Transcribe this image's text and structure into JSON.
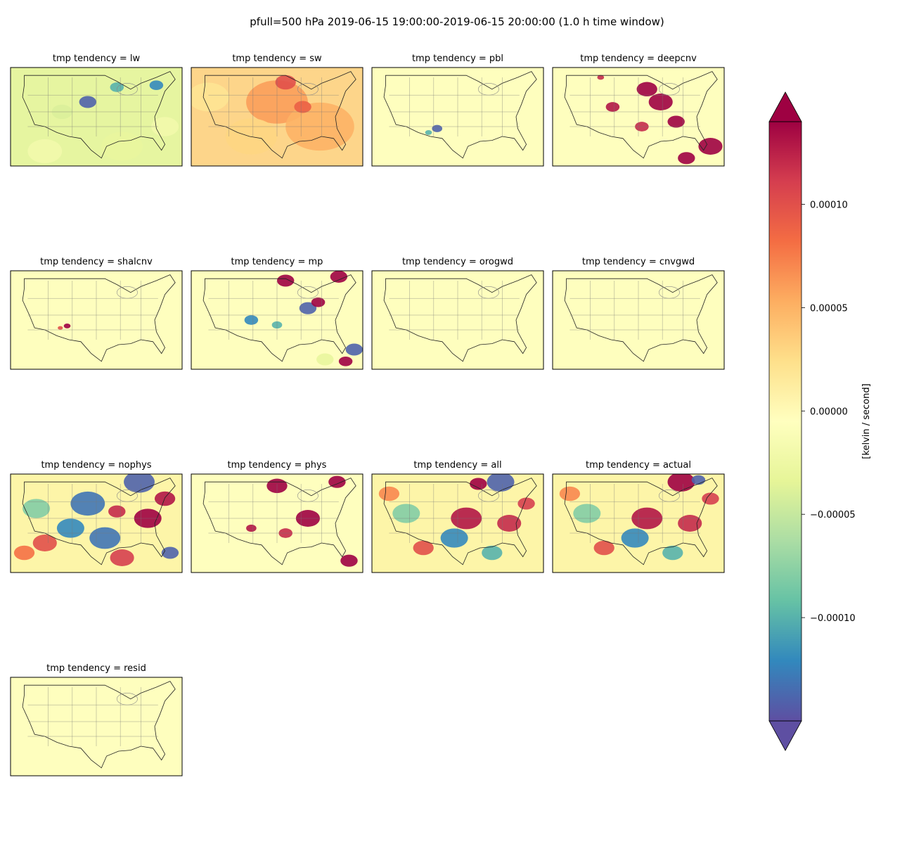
{
  "chart_data": {
    "type": "heatmap",
    "title": "pfull=500 hPa 2019-06-15 19:00:00-2019-06-15 20:00:00 (1.0 h time window)",
    "layout": {
      "columns": 4,
      "rows": 4
    },
    "panels": [
      {
        "title": "tmp tendency = lw",
        "background": "#e6f5a0",
        "fields": [
          {
            "cx": 0.45,
            "cy": 0.35,
            "r": 0.05,
            "v": -0.00014
          },
          {
            "cx": 0.85,
            "cy": 0.18,
            "r": 0.04,
            "v": -0.00012
          },
          {
            "cx": 0.62,
            "cy": 0.2,
            "r": 0.04,
            "v": -0.0001
          },
          {
            "cx": 0.3,
            "cy": 0.45,
            "r": 0.06,
            "v": -4e-05
          },
          {
            "cx": 0.65,
            "cy": 0.8,
            "r": 0.12,
            "v": -3e-05
          },
          {
            "cx": 0.2,
            "cy": 0.85,
            "r": 0.1,
            "v": -2e-05
          },
          {
            "cx": 0.9,
            "cy": 0.6,
            "r": 0.08,
            "v": -2e-05
          }
        ]
      },
      {
        "title": "tmp tendency = sw",
        "background": "#fdd58a",
        "fields": [
          {
            "cx": 0.5,
            "cy": 0.35,
            "r": 0.18,
            "v": 6e-05
          },
          {
            "cx": 0.75,
            "cy": 0.6,
            "r": 0.2,
            "v": 5e-05
          },
          {
            "cx": 0.35,
            "cy": 0.7,
            "r": 0.15,
            "v": 3e-05
          },
          {
            "cx": 0.1,
            "cy": 0.3,
            "r": 0.12,
            "v": 2e-05
          },
          {
            "cx": 0.55,
            "cy": 0.15,
            "r": 0.06,
            "v": 0.0001
          },
          {
            "cx": 0.65,
            "cy": 0.4,
            "r": 0.05,
            "v": 9e-05
          }
        ]
      },
      {
        "title": "tmp tendency = pbl",
        "background": "#fefebe",
        "fields": [
          {
            "cx": 0.38,
            "cy": 0.62,
            "r": 0.03,
            "v": -0.00014
          },
          {
            "cx": 0.33,
            "cy": 0.66,
            "r": 0.02,
            "v": -0.0001
          }
        ]
      },
      {
        "title": "tmp tendency = deepcnv",
        "background": "#fefebe",
        "fields": [
          {
            "cx": 0.55,
            "cy": 0.22,
            "r": 0.06,
            "v": 0.00014
          },
          {
            "cx": 0.63,
            "cy": 0.35,
            "r": 0.07,
            "v": 0.00014
          },
          {
            "cx": 0.35,
            "cy": 0.4,
            "r": 0.04,
            "v": 0.00013
          },
          {
            "cx": 0.72,
            "cy": 0.55,
            "r": 0.05,
            "v": 0.00014
          },
          {
            "cx": 0.52,
            "cy": 0.6,
            "r": 0.04,
            "v": 0.00012
          },
          {
            "cx": 0.92,
            "cy": 0.8,
            "r": 0.07,
            "v": 0.00014
          },
          {
            "cx": 0.78,
            "cy": 0.92,
            "r": 0.05,
            "v": 0.00014
          },
          {
            "cx": 0.28,
            "cy": 0.1,
            "r": 0.02,
            "v": 0.00012
          }
        ]
      },
      {
        "title": "tmp tendency = shalcnv",
        "background": "#fefebe",
        "fields": [
          {
            "cx": 0.33,
            "cy": 0.56,
            "r": 0.02,
            "v": 0.00014
          },
          {
            "cx": 0.29,
            "cy": 0.58,
            "r": 0.015,
            "v": 0.0001
          }
        ]
      },
      {
        "title": "tmp tendency = mp",
        "background": "#fefebe",
        "fields": [
          {
            "cx": 0.55,
            "cy": 0.1,
            "r": 0.05,
            "v": 0.00014
          },
          {
            "cx": 0.68,
            "cy": 0.38,
            "r": 0.05,
            "v": -0.00014
          },
          {
            "cx": 0.74,
            "cy": 0.32,
            "r": 0.04,
            "v": 0.00014
          },
          {
            "cx": 0.86,
            "cy": 0.06,
            "r": 0.05,
            "v": 0.00014
          },
          {
            "cx": 0.35,
            "cy": 0.5,
            "r": 0.04,
            "v": -0.00012
          },
          {
            "cx": 0.5,
            "cy": 0.55,
            "r": 0.03,
            "v": -0.0001
          },
          {
            "cx": 0.95,
            "cy": 0.8,
            "r": 0.05,
            "v": -0.00014
          },
          {
            "cx": 0.9,
            "cy": 0.92,
            "r": 0.04,
            "v": 0.00014
          },
          {
            "cx": 0.78,
            "cy": 0.9,
            "r": 0.05,
            "v": -3e-05
          }
        ]
      },
      {
        "title": "tmp tendency = orogwd",
        "background": "#fefebe",
        "fields": []
      },
      {
        "title": "tmp tendency = cnvgwd",
        "background": "#fefebe",
        "fields": []
      },
      {
        "title": "tmp tendency = nophys",
        "background": "#fdf5a8",
        "fields": [
          {
            "cx": 0.75,
            "cy": 0.08,
            "r": 0.09,
            "v": -0.00014
          },
          {
            "cx": 0.45,
            "cy": 0.3,
            "r": 0.1,
            "v": -0.00013
          },
          {
            "cx": 0.35,
            "cy": 0.55,
            "r": 0.08,
            "v": -0.00012
          },
          {
            "cx": 0.55,
            "cy": 0.65,
            "r": 0.09,
            "v": -0.00013
          },
          {
            "cx": 0.8,
            "cy": 0.45,
            "r": 0.08,
            "v": 0.00014
          },
          {
            "cx": 0.9,
            "cy": 0.25,
            "r": 0.06,
            "v": 0.00013
          },
          {
            "cx": 0.15,
            "cy": 0.35,
            "r": 0.08,
            "v": -8e-05
          },
          {
            "cx": 0.2,
            "cy": 0.7,
            "r": 0.07,
            "v": 0.0001
          },
          {
            "cx": 0.65,
            "cy": 0.85,
            "r": 0.07,
            "v": 0.00011
          },
          {
            "cx": 0.93,
            "cy": 0.8,
            "r": 0.05,
            "v": -0.00014
          },
          {
            "cx": 0.08,
            "cy": 0.8,
            "r": 0.06,
            "v": 8e-05
          },
          {
            "cx": 0.62,
            "cy": 0.38,
            "r": 0.05,
            "v": 0.00012
          }
        ]
      },
      {
        "title": "tmp tendency = phys",
        "background": "#fefebe",
        "fields": [
          {
            "cx": 0.5,
            "cy": 0.12,
            "r": 0.06,
            "v": 0.00014
          },
          {
            "cx": 0.68,
            "cy": 0.45,
            "r": 0.07,
            "v": 0.00014
          },
          {
            "cx": 0.85,
            "cy": 0.08,
            "r": 0.05,
            "v": 0.00014
          },
          {
            "cx": 0.35,
            "cy": 0.55,
            "r": 0.03,
            "v": 0.00013
          },
          {
            "cx": 0.92,
            "cy": 0.88,
            "r": 0.05,
            "v": 0.00014
          },
          {
            "cx": 0.55,
            "cy": 0.6,
            "r": 0.04,
            "v": 0.00012
          }
        ]
      },
      {
        "title": "tmp tendency = all",
        "background": "#fdf5a8",
        "fields": [
          {
            "cx": 0.75,
            "cy": 0.08,
            "r": 0.08,
            "v": -0.00014
          },
          {
            "cx": 0.62,
            "cy": 0.1,
            "r": 0.05,
            "v": 0.00014
          },
          {
            "cx": 0.55,
            "cy": 0.45,
            "r": 0.09,
            "v": 0.00013
          },
          {
            "cx": 0.48,
            "cy": 0.65,
            "r": 0.08,
            "v": -0.00012
          },
          {
            "cx": 0.2,
            "cy": 0.4,
            "r": 0.08,
            "v": -8e-05
          },
          {
            "cx": 0.8,
            "cy": 0.5,
            "r": 0.07,
            "v": 0.00012
          },
          {
            "cx": 0.3,
            "cy": 0.75,
            "r": 0.06,
            "v": 0.0001
          },
          {
            "cx": 0.7,
            "cy": 0.8,
            "r": 0.06,
            "v": -0.0001
          },
          {
            "cx": 0.9,
            "cy": 0.3,
            "r": 0.05,
            "v": 0.00011
          },
          {
            "cx": 0.1,
            "cy": 0.2,
            "r": 0.06,
            "v": 7e-05
          }
        ]
      },
      {
        "title": "tmp tendency = actual",
        "background": "#fdf5a8",
        "fields": [
          {
            "cx": 0.75,
            "cy": 0.08,
            "r": 0.08,
            "v": 0.00014
          },
          {
            "cx": 0.85,
            "cy": 0.06,
            "r": 0.04,
            "v": -0.00014
          },
          {
            "cx": 0.55,
            "cy": 0.45,
            "r": 0.09,
            "v": 0.00013
          },
          {
            "cx": 0.48,
            "cy": 0.65,
            "r": 0.08,
            "v": -0.00012
          },
          {
            "cx": 0.2,
            "cy": 0.4,
            "r": 0.08,
            "v": -8e-05
          },
          {
            "cx": 0.8,
            "cy": 0.5,
            "r": 0.07,
            "v": 0.00012
          },
          {
            "cx": 0.3,
            "cy": 0.75,
            "r": 0.06,
            "v": 0.0001
          },
          {
            "cx": 0.7,
            "cy": 0.8,
            "r": 0.06,
            "v": -0.0001
          },
          {
            "cx": 0.92,
            "cy": 0.25,
            "r": 0.05,
            "v": 0.00011
          },
          {
            "cx": 0.1,
            "cy": 0.2,
            "r": 0.06,
            "v": 7e-05
          }
        ]
      },
      {
        "title": "tmp tendency = resid",
        "background": "#fefebe",
        "fields": []
      }
    ],
    "colorbar": {
      "label": "[kelvin / second]",
      "vmin": -0.00015,
      "vmax": 0.00014,
      "ticks": [
        -0.0001,
        -5e-05,
        0,
        5e-05,
        0.0001
      ],
      "tick_labels": [
        "−0.00010",
        "−0.00005",
        "0.00000",
        "0.00005",
        "0.00010"
      ],
      "colormap": "Spectral_r",
      "extend": "both",
      "stops": [
        "#5e4fa2",
        "#3288bd",
        "#66c2a5",
        "#abdda4",
        "#e6f598",
        "#ffffbf",
        "#fee08b",
        "#fdae61",
        "#f46d43",
        "#d53e4f",
        "#9e0142"
      ]
    }
  }
}
